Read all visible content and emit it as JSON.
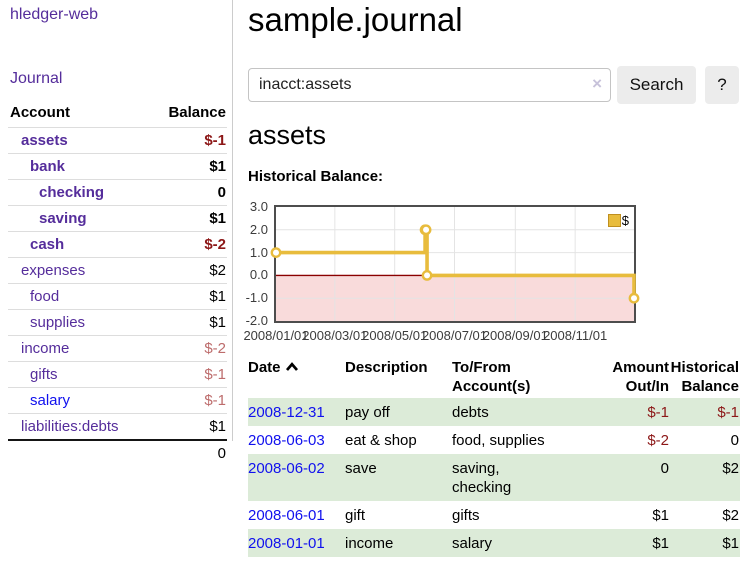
{
  "sidebar": {
    "brand": "hledger-web",
    "nav": {
      "journal": "Journal"
    },
    "accounts_table": {
      "headers": {
        "account": "Account",
        "balance": "Balance"
      },
      "rows": [
        {
          "name": "assets",
          "indent": 1,
          "bold": true,
          "balance": "$-1"
        },
        {
          "name": "bank",
          "indent": 2,
          "bold": true,
          "balance": "$1"
        },
        {
          "name": "checking",
          "indent": 3,
          "bold": true,
          "balance": "0"
        },
        {
          "name": "saving",
          "indent": 3,
          "bold": true,
          "balance": "$1"
        },
        {
          "name": "cash",
          "indent": 2,
          "bold": true,
          "balance": "$-2"
        },
        {
          "name": "expenses",
          "indent": 1,
          "bold": false,
          "balance": "$2"
        },
        {
          "name": "food",
          "indent": 2,
          "bold": false,
          "balance": "$1"
        },
        {
          "name": "supplies",
          "indent": 2,
          "bold": false,
          "balance": "$1"
        },
        {
          "name": "income",
          "indent": 1,
          "bold": false,
          "balance": "$-2"
        },
        {
          "name": "gifts",
          "indent": 2,
          "bold": false,
          "balance": "$-1"
        },
        {
          "name": "salary",
          "indent": 2,
          "bold": false,
          "balance": "$-1",
          "unvisited": true
        },
        {
          "name": "liabilities:debts",
          "indent": 1,
          "bold": false,
          "balance": "$1"
        }
      ],
      "total": "0"
    }
  },
  "header": {
    "title": "sample.journal"
  },
  "search": {
    "value": "inacct:assets",
    "clear_icon": "×",
    "button": "Search",
    "help_button": "?"
  },
  "account_page": {
    "title": "assets",
    "chart_label": "Historical Balance:"
  },
  "chart_data": {
    "type": "line",
    "step": true,
    "series": [
      {
        "name": "$",
        "points": [
          [
            "2008-01-01",
            1
          ],
          [
            "2008-06-01",
            2
          ],
          [
            "2008-06-02",
            2
          ],
          [
            "2008-06-03",
            0
          ],
          [
            "2008-12-31",
            -1
          ]
        ]
      }
    ],
    "ylim": [
      -2,
      3
    ],
    "yticks": [
      "3.0",
      "2.0",
      "1.0",
      "0.0",
      "-1.0",
      "-2.0"
    ],
    "xticks": [
      "2008/01/01",
      "2008/03/01",
      "2008/05/01",
      "2008/07/01",
      "2008/09/01",
      "2008/11/01"
    ],
    "x_range": [
      "2008-01-01",
      "2008-12-31"
    ],
    "legend": {
      "label": "$",
      "position": "top-right"
    },
    "grid": true,
    "negative_region_shaded": true
  },
  "register_table": {
    "headers": {
      "date": "Date",
      "description": "Description",
      "accounts": "To/From Account(s)",
      "amount": "Amount Out/In",
      "balance": "Historical Balance"
    },
    "rows": [
      {
        "date": "2008-12-31",
        "description": "pay off",
        "accounts": "debts",
        "amount": "$-1",
        "balance": "$-1"
      },
      {
        "date": "2008-06-03",
        "description": "eat & shop",
        "accounts": "food, supplies",
        "amount": "$-2",
        "balance": "0"
      },
      {
        "date": "2008-06-02",
        "description": "save",
        "accounts": "saving, checking",
        "amount": "0",
        "balance": "$2"
      },
      {
        "date": "2008-06-01",
        "description": "gift",
        "accounts": "gifts",
        "amount": "$1",
        "balance": "$2"
      },
      {
        "date": "2008-01-01",
        "description": "income",
        "accounts": "salary",
        "amount": "$1",
        "balance": "$1"
      }
    ]
  },
  "colors": {
    "link_visited": "#552d9b",
    "link_unvisited": "#1111ee",
    "negative_strong": "#8c1717",
    "negative_soft": "#bd6c6c",
    "row_stripe_green": "#dcebd8",
    "chart_line_gold": "#e8bc3d",
    "chart_negative_bg": "#f9dbdb",
    "chart_zero_line": "#8b0000",
    "button_bg": "#ececec"
  }
}
